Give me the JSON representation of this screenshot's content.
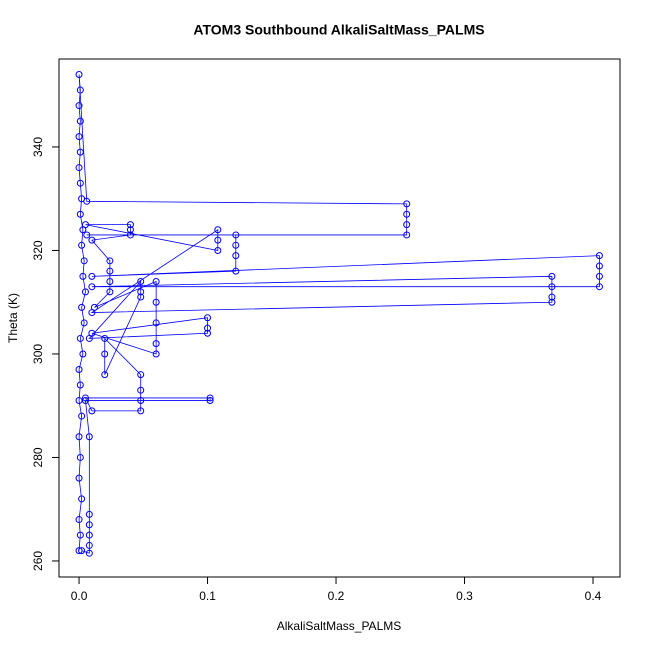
{
  "chart_data": {
    "type": "line",
    "title": "ATOM3 Southbound AlkaliSaltMass_PALMS",
    "x_label": "AlkaliSaltMass_PALMS",
    "y_label": "Theta (K)",
    "xlim": [
      -0.0156,
      0.421
    ],
    "ylim": [
      256.9,
      357.0
    ],
    "xticks": [
      {
        "value": 0,
        "label": "0.0"
      },
      {
        "value": 0.1,
        "label": "0.1"
      },
      {
        "value": 0.2,
        "label": "0.2"
      },
      {
        "value": 0.3,
        "label": "0.3"
      },
      {
        "value": 0.4,
        "label": "0.4"
      }
    ],
    "yticks": [
      260,
      280,
      300,
      320,
      340
    ],
    "markers": true,
    "series": [
      {
        "color": "#0000ff",
        "x": [
          0,
          0.001,
          0,
          0.002,
          0,
          0.001,
          0,
          0.002,
          0,
          0.001,
          0,
          0.003,
          0.001,
          0.004,
          0.002,
          0.005,
          0.003,
          0.004,
          0.002,
          0.003,
          0.001,
          0.002,
          0.001,
          0,
          0.001,
          0,
          0.001,
          0,
          0.001,
          0,
          0.006,
          0.255,
          0.255,
          0.255,
          0.255,
          0.006,
          0.122,
          0.122,
          0.122,
          0.122,
          0.01,
          0.405,
          0.405,
          0.405,
          0.405,
          0.01,
          0.368,
          0.368,
          0.368,
          0.368,
          0.01,
          0.108,
          0.108,
          0.108,
          0.005,
          0.04,
          0.04,
          0.04,
          0.01,
          0.024,
          0.024,
          0.024,
          0.024,
          0.012,
          0.06,
          0.06,
          0.06,
          0.06,
          0.06,
          0.01,
          0.1,
          0.1,
          0.1,
          0.008,
          0.048,
          0.048,
          0.048,
          0.02,
          0.02,
          0.02,
          0.048,
          0.048,
          0.048,
          0.048,
          0.01,
          0.005,
          0.102,
          0.102,
          0.005,
          0.008,
          0.008,
          0.008,
          0.008,
          0.008,
          0.008,
          0.002
        ],
        "values": [
          262,
          265,
          268,
          272,
          276,
          280,
          284,
          288,
          291,
          294,
          297,
          300,
          303,
          306,
          309,
          312,
          315,
          318,
          321,
          324,
          327,
          330,
          333,
          336,
          339,
          342,
          345,
          348,
          351,
          354,
          329.5,
          329,
          327,
          325,
          323,
          323,
          323,
          321,
          319,
          316,
          315,
          319,
          317,
          315,
          313,
          313,
          315,
          313,
          311,
          310,
          308,
          324,
          322,
          320,
          325,
          325,
          324,
          323,
          322,
          318,
          316,
          314,
          312,
          309,
          314,
          310,
          306,
          302,
          300,
          304,
          307,
          305,
          304,
          303,
          314,
          312,
          311,
          296,
          300,
          303,
          296,
          293,
          291,
          289,
          289,
          291.5,
          291.5,
          291,
          291,
          284,
          269,
          267,
          265,
          263,
          261.5,
          262
        ]
      }
    ]
  }
}
